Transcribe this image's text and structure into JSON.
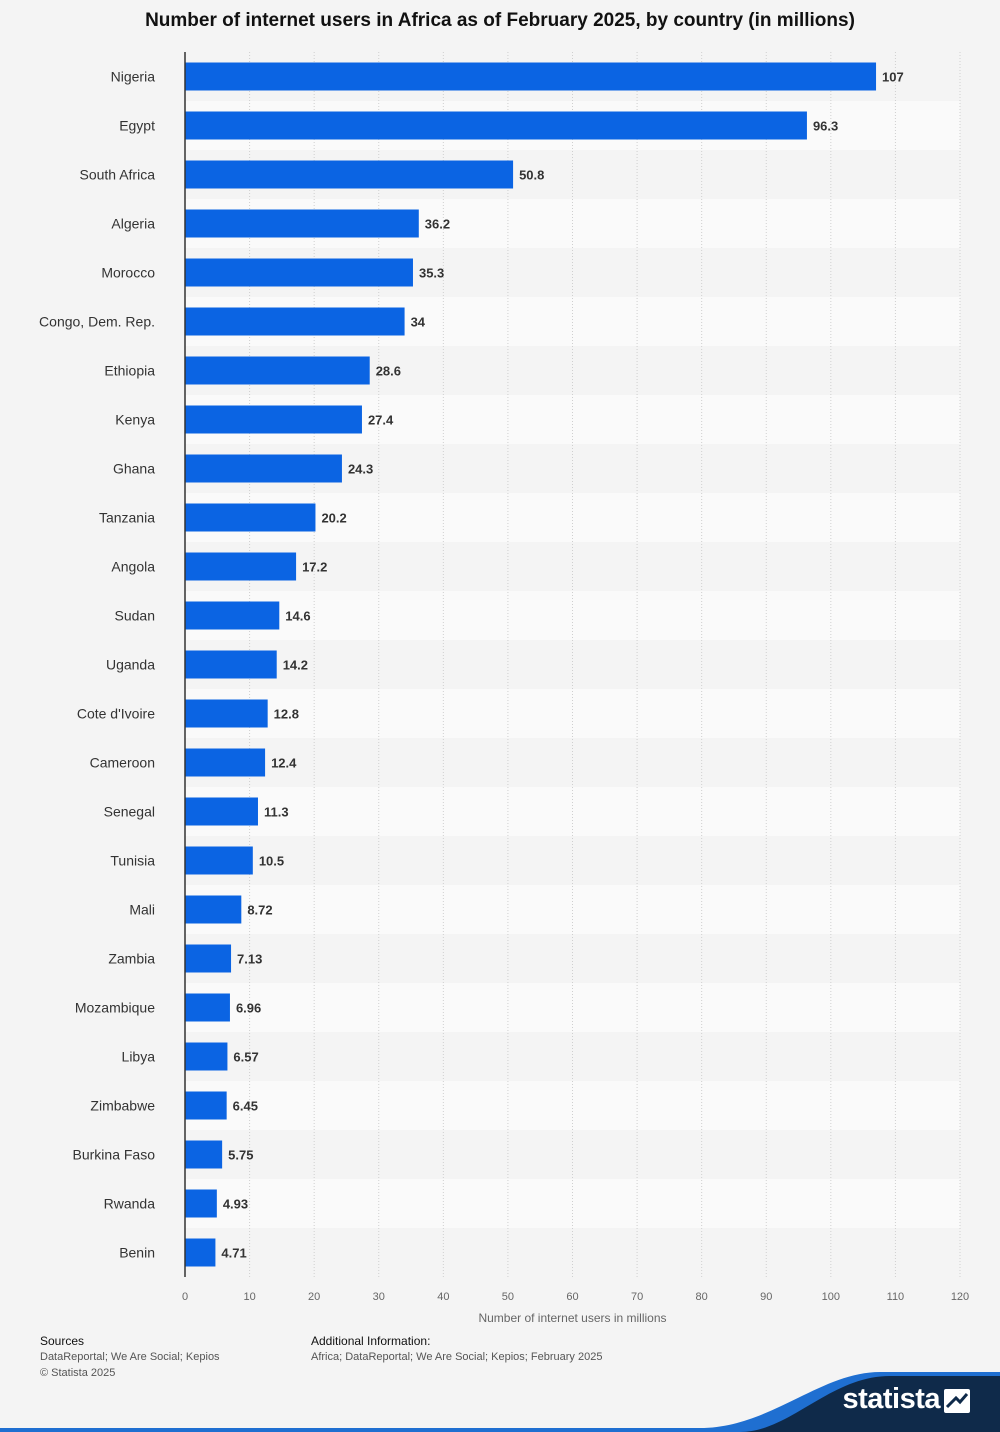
{
  "chart_data": {
    "type": "bar",
    "orientation": "horizontal",
    "title": "Number of internet users in Africa as of February 2025, by country (in millions)",
    "xlabel": "Number of internet users in millions",
    "ylabel": "",
    "xlim": [
      0,
      120
    ],
    "x_ticks": [
      0,
      10,
      20,
      30,
      40,
      50,
      60,
      70,
      80,
      90,
      100,
      110,
      120
    ],
    "grid": "vertical dotted",
    "bar_color": "#0b64e3",
    "categories": [
      "Nigeria",
      "Egypt",
      "South Africa",
      "Algeria",
      "Morocco",
      "Congo, Dem. Rep.",
      "Ethiopia",
      "Kenya",
      "Ghana",
      "Tanzania",
      "Angola",
      "Sudan",
      "Uganda",
      "Cote d'Ivoire",
      "Cameroon",
      "Senegal",
      "Tunisia",
      "Mali",
      "Zambia",
      "Mozambique",
      "Libya",
      "Zimbabwe",
      "Burkina Faso",
      "Rwanda",
      "Benin"
    ],
    "values": [
      107,
      96.3,
      50.8,
      36.2,
      35.3,
      34,
      28.6,
      27.4,
      24.3,
      20.2,
      17.2,
      14.6,
      14.2,
      12.8,
      12.4,
      11.3,
      10.5,
      8.72,
      7.13,
      6.96,
      6.57,
      6.45,
      5.75,
      4.93,
      4.71
    ]
  },
  "footer": {
    "sources_heading": "Sources",
    "sources_text": "DataReportal; We Are Social; Kepios",
    "copyright": "© Statista 2025",
    "additional_heading": "Additional Information:",
    "additional_text": "Africa; DataReportal; We Are Social; Kepios; February 2025"
  },
  "branding": {
    "logo_text": "statista",
    "swoosh_color": "#0f2a4a",
    "accent_color": "#1f6fd1"
  }
}
